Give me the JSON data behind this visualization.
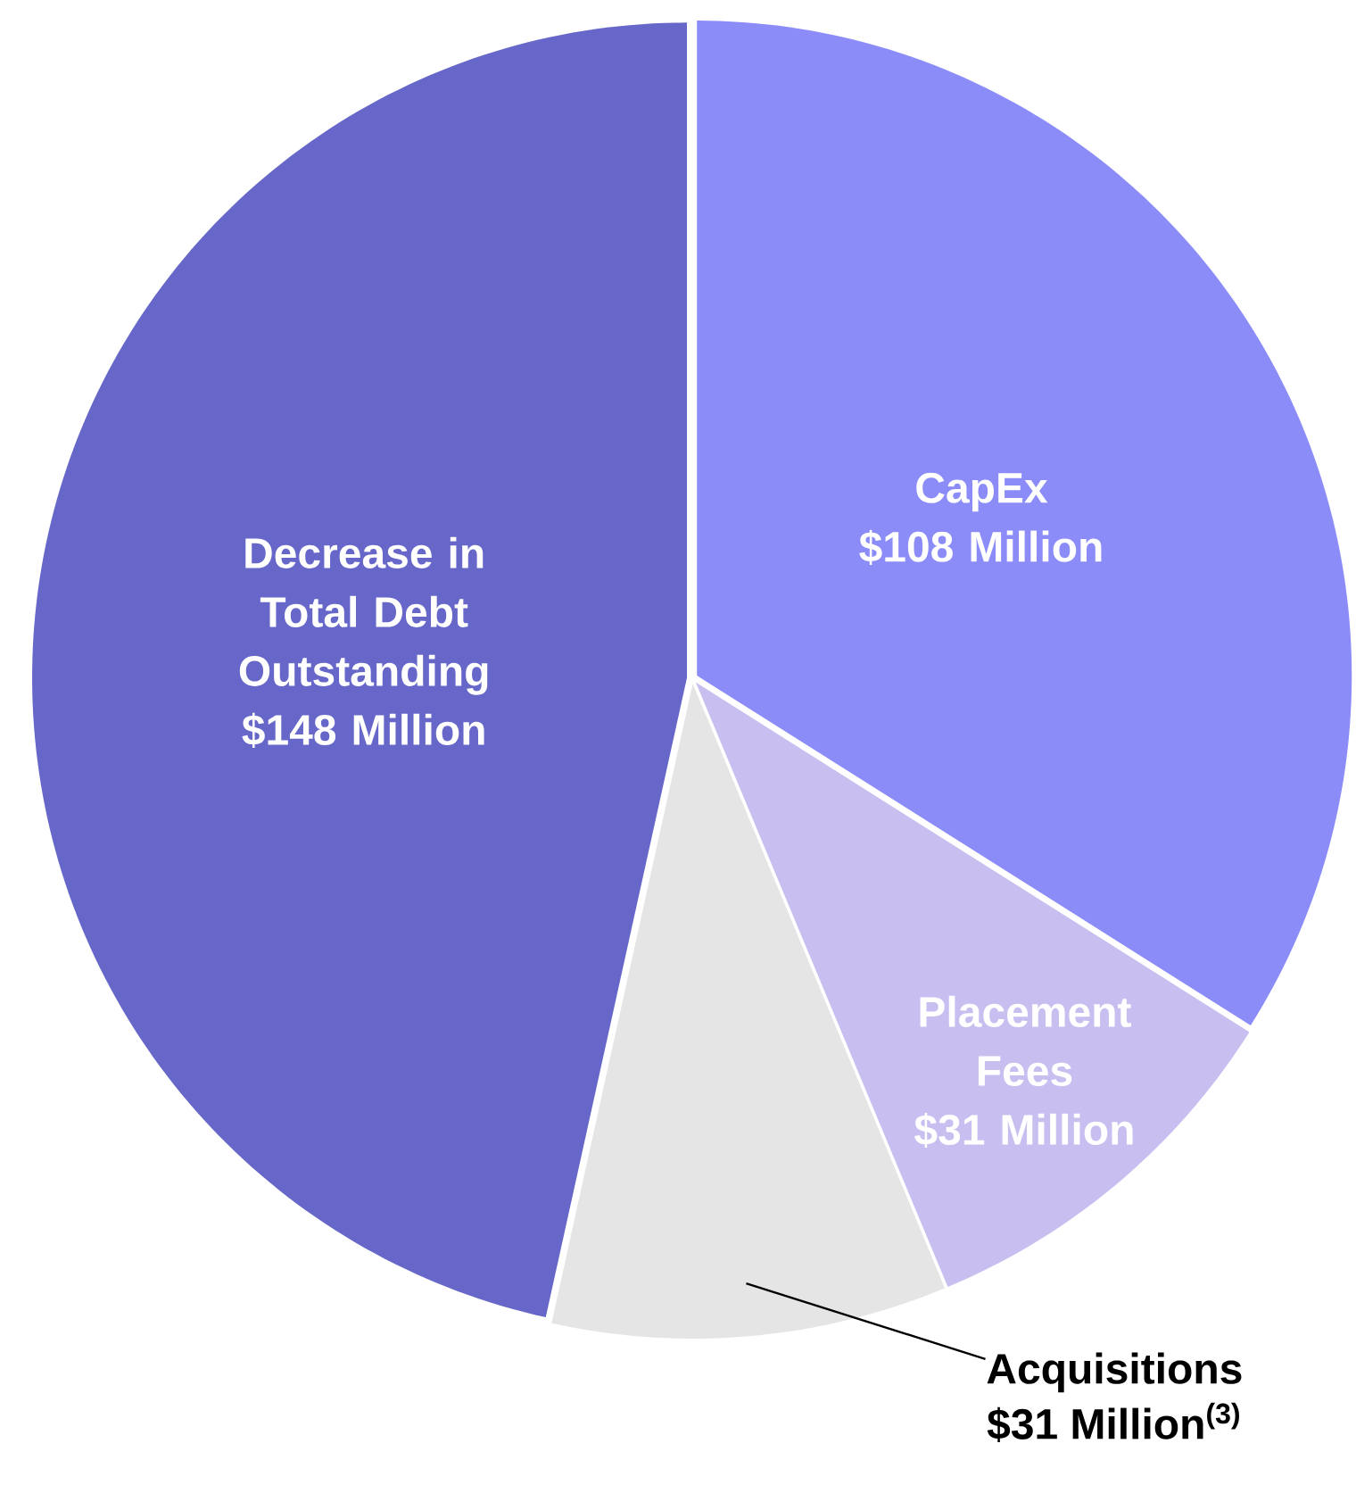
{
  "chart_data": {
    "type": "pie",
    "categories": [
      "CapEx",
      "Placement Fees",
      "Acquisitions",
      "Decrease in Total Debt Outstanding"
    ],
    "values": [
      108,
      31,
      31,
      148
    ],
    "colors": [
      "#8b8cf8",
      "#c8bff0",
      "#e5e5e5",
      "#6667c9"
    ],
    "value_labels": [
      "$108 Million",
      "$31 Million",
      "$31 Million$^{(3)}$",
      "$148 Million"
    ]
  }
}
